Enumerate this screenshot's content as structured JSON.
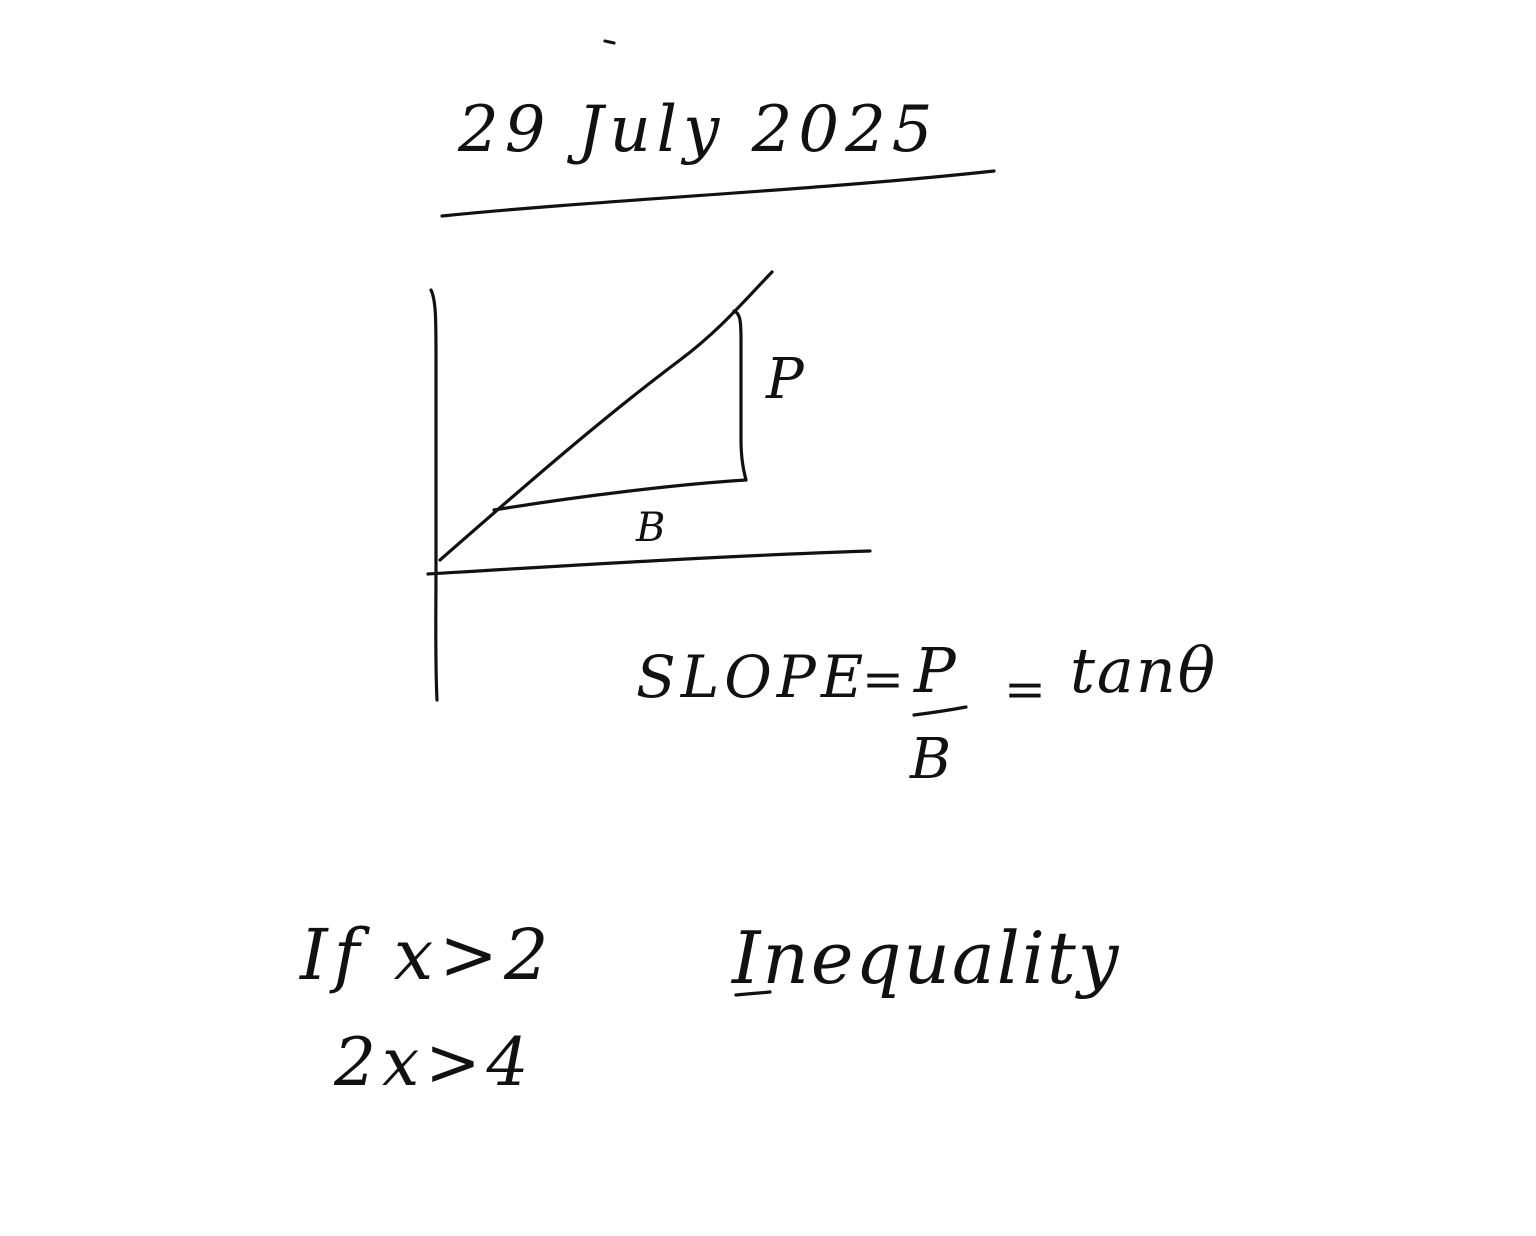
{
  "note": {
    "date": "29 July 2025",
    "diagram": {
      "label_perpendicular": "P",
      "label_base": "B"
    },
    "slope_formula": {
      "lhs": "SLOPE",
      "equals1": "=",
      "numerator": "P",
      "denominator": "B",
      "equals2": "=",
      "rhs": "tanθ"
    },
    "inequality_example": {
      "line1": "If x>2",
      "line2": "2x>4",
      "title": "Inequality"
    }
  },
  "colors": {
    "ink": "#111111",
    "paper": "#ffffff"
  }
}
